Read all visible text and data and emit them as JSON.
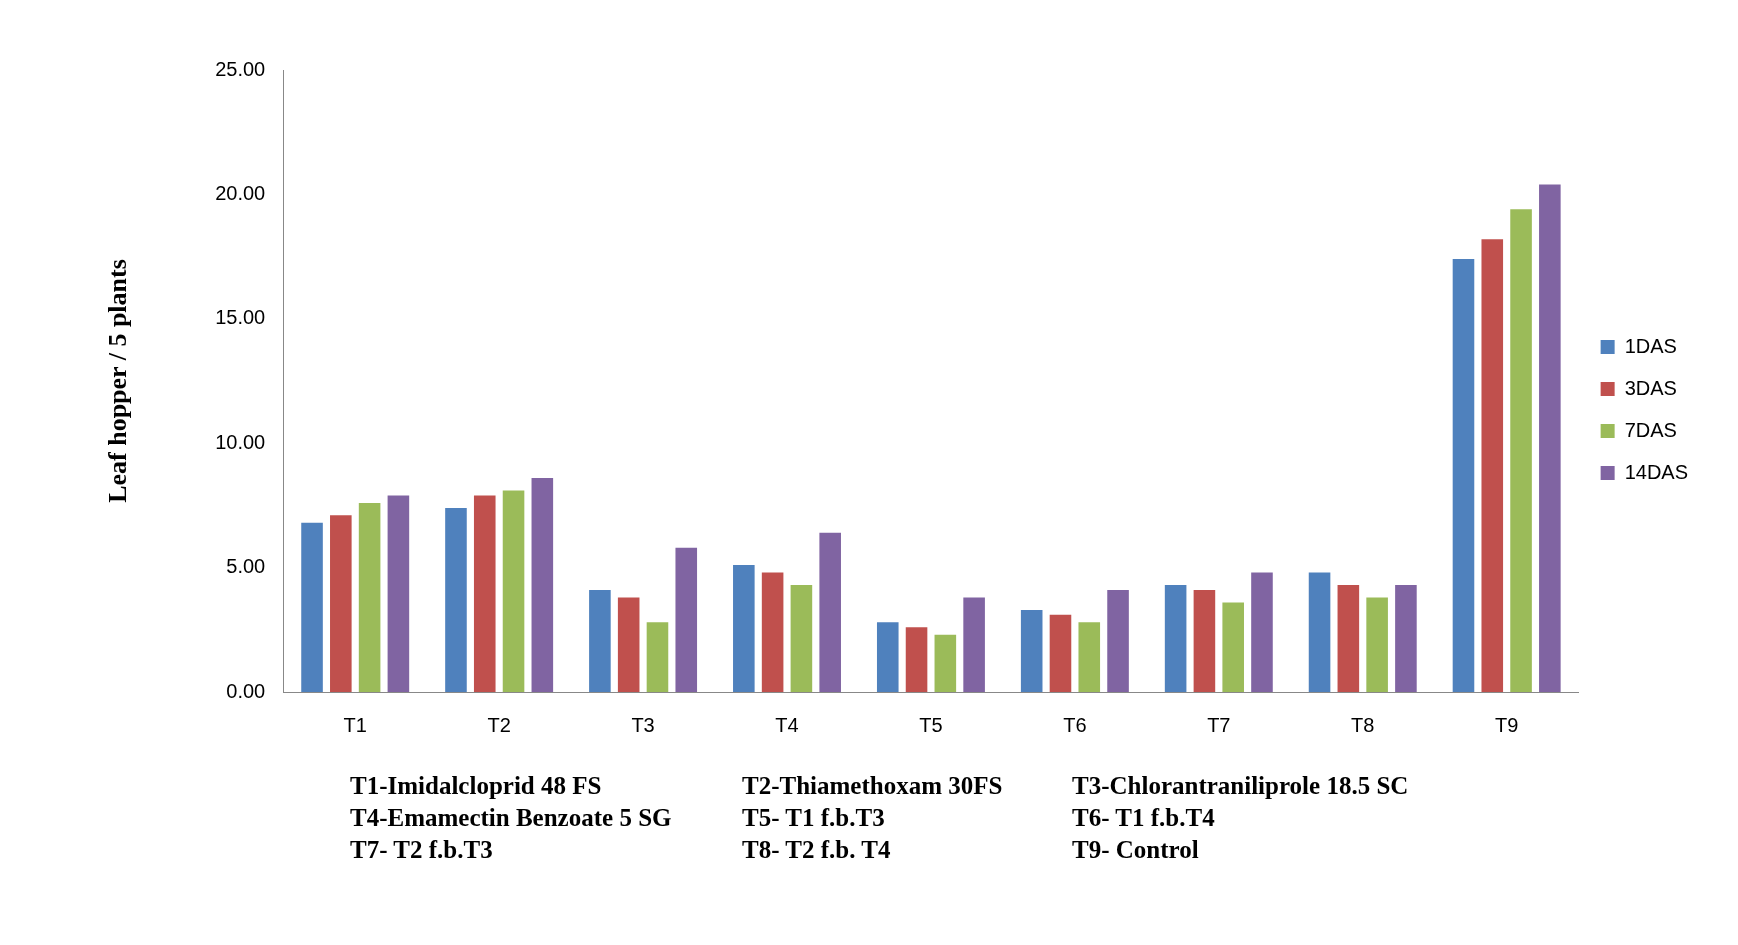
{
  "chart_data": {
    "type": "bar",
    "ylabel": "Leaf hopper / 5 plants",
    "categories": [
      "T1",
      "T2",
      "T3",
      "T4",
      "T5",
      "T6",
      "T7",
      "T8",
      "T9"
    ],
    "series": [
      {
        "name": "1DAS",
        "color": "#4f81bd",
        "values": [
          6.8,
          7.4,
          4.1,
          5.1,
          2.8,
          3.3,
          4.3,
          4.8,
          17.4
        ]
      },
      {
        "name": "3DAS",
        "color": "#c0504d",
        "values": [
          7.1,
          7.9,
          3.8,
          4.8,
          2.6,
          3.1,
          4.1,
          4.3,
          18.2
        ]
      },
      {
        "name": "7DAS",
        "color": "#9bbb59",
        "values": [
          7.6,
          8.1,
          2.8,
          4.3,
          2.3,
          2.8,
          3.6,
          3.8,
          19.4
        ]
      },
      {
        "name": "14DAS",
        "color": "#8064a2",
        "values": [
          7.9,
          8.6,
          5.8,
          6.4,
          3.8,
          4.1,
          4.8,
          4.3,
          20.4
        ]
      }
    ],
    "ylim": [
      0,
      25
    ],
    "yticks": [
      {
        "value": 0,
        "label": "0.00"
      },
      {
        "value": 5,
        "label": "5.00"
      },
      {
        "value": 10,
        "label": "10.00"
      },
      {
        "value": 15,
        "label": "15.00"
      },
      {
        "value": 20,
        "label": "20.00"
      },
      {
        "value": 25,
        "label": "25.00"
      }
    ],
    "grid": false,
    "legend": "right",
    "annotations": [
      "T1-Imidalcloprid 48 FS",
      "T2-Thiamethoxam 30FS",
      "T3-Chlorantraniliprole 18.5 SC",
      "T4-Emamectin Benzoate 5 SG",
      "T5- T1 f.b.T3",
      "T6- T1 f.b.T4",
      "T7- T2 f.b.T3",
      "T8- T2 f.b. T4",
      "T9- Control"
    ]
  }
}
